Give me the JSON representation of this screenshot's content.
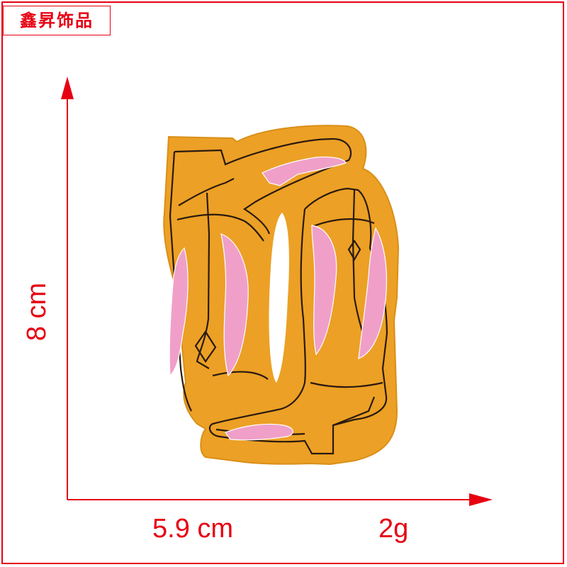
{
  "brand": {
    "text": "鑫昇饰品"
  },
  "dimensions": {
    "height_label": "8 cm",
    "width_label": "5.9 cm",
    "weight_label": "2g"
  },
  "colors": {
    "accent": "#e60012",
    "patch_felt": "#eca025",
    "embroidery_pink": "#f0a0c8",
    "stitch_line": "#2a1a10"
  },
  "product": {
    "subject": "embroidered cowboy boots patch"
  }
}
